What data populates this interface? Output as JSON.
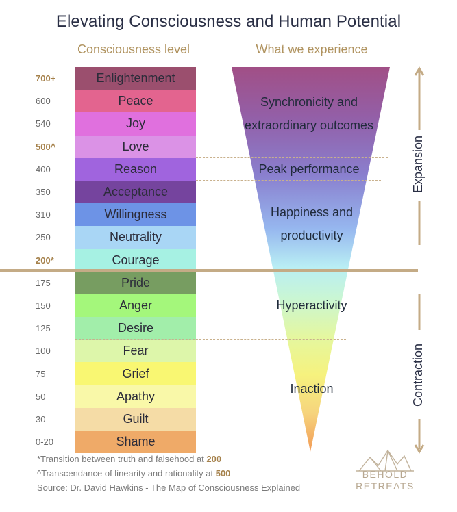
{
  "title": "Elevating Consciousness and Human Potential",
  "headers": {
    "consciousness_level": "Consciousness level",
    "experience": "What we experience"
  },
  "levels": [
    {
      "value": "700+",
      "name": "Enlightenment",
      "color": "#9b4f6e",
      "bold": true
    },
    {
      "value": "600",
      "name": "Peace",
      "color": "#e3648f",
      "bold": false
    },
    {
      "value": "540",
      "name": "Joy",
      "color": "#e070de",
      "bold": false
    },
    {
      "value": "500^",
      "name": "Love",
      "color": "#db92e6",
      "bold": true
    },
    {
      "value": "400",
      "name": "Reason",
      "color": "#a064de",
      "bold": false
    },
    {
      "value": "350",
      "name": "Acceptance",
      "color": "#75449e",
      "bold": false
    },
    {
      "value": "310",
      "name": "Willingness",
      "color": "#6d93e6",
      "bold": false
    },
    {
      "value": "250",
      "name": "Neutrality",
      "color": "#a9d6f5",
      "bold": false
    },
    {
      "value": "200*",
      "name": "Courage",
      "color": "#a6f1e3",
      "bold": true
    },
    {
      "value": "175",
      "name": "Pride",
      "color": "#779d61",
      "bold": false
    },
    {
      "value": "150",
      "name": "Anger",
      "color": "#a4f77b",
      "bold": false
    },
    {
      "value": "125",
      "name": "Desire",
      "color": "#a2eeaa",
      "bold": false
    },
    {
      "value": "100",
      "name": "Fear",
      "color": "#ddf6aa",
      "bold": false
    },
    {
      "value": "75",
      "name": "Grief",
      "color": "#f9f772",
      "bold": false
    },
    {
      "value": "50",
      "name": "Apathy",
      "color": "#f9f8a8",
      "bold": false
    },
    {
      "value": "30",
      "name": "Guilt",
      "color": "#f5dca6",
      "bold": false
    },
    {
      "value": "0-20",
      "name": "Shame",
      "color": "#efaa68",
      "bold": false
    }
  ],
  "experiences": {
    "e1": "Synchronicity and extraordinary outcomes",
    "e1_line1": "Synchronicity and",
    "e1_line2": "extraordinary outcomes",
    "e2": "Peak performance",
    "e3_line1": "Happiness and",
    "e3_line2": "productivity",
    "e4": "Hyperactivity",
    "e5": "Inaction"
  },
  "side_labels": {
    "expansion": "Expansion",
    "contraction": "Contraction"
  },
  "notes": {
    "n1_text": "*Transition between truth and falsehood at ",
    "n1_value": "200",
    "n2_text": "^Transcendance of linearity and rationality at ",
    "n2_value": "500",
    "source": "Source: Dr. David Hawkins - The Map of Consciousness Explained"
  },
  "logo": {
    "line1": "BEHOLD",
    "line2": "RETREATS"
  },
  "colors": {
    "accent": "#c4ab86",
    "gold_text": "#a5814b"
  }
}
